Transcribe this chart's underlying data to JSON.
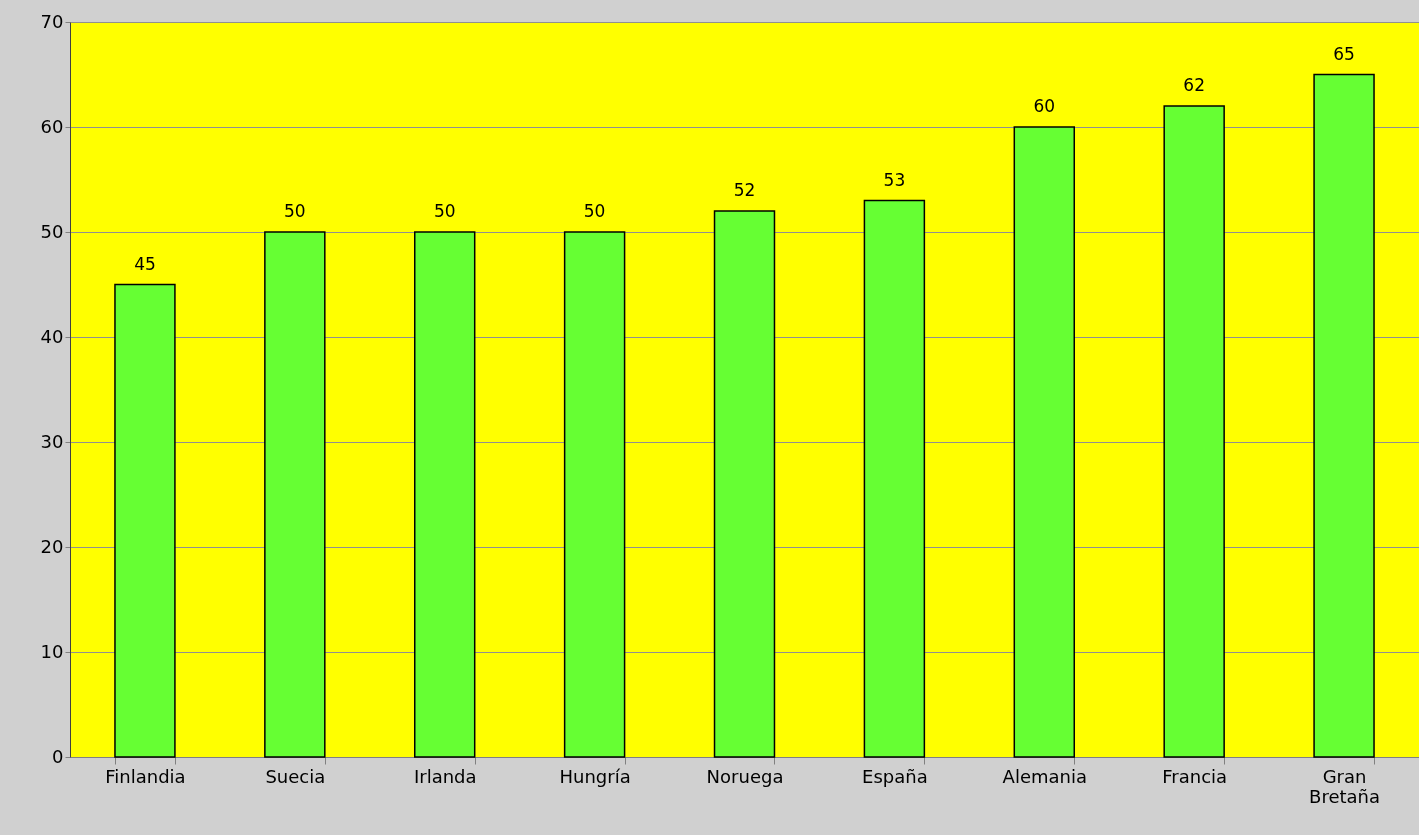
{
  "chart_data": {
    "type": "bar",
    "categories": [
      "Finlandia",
      "Suecia",
      "Irlanda",
      "Hungría",
      "Noruega",
      "España",
      "Alemania",
      "Francia",
      "Gran Bretaña"
    ],
    "values": [
      45,
      50,
      50,
      50,
      52,
      53,
      60,
      62,
      65
    ],
    "color": "#66ff33",
    "ylim": [
      0,
      70
    ],
    "yticks": [
      0,
      10,
      20,
      30,
      40,
      50,
      60,
      70
    ],
    "grid": "y",
    "data_labels": true
  }
}
